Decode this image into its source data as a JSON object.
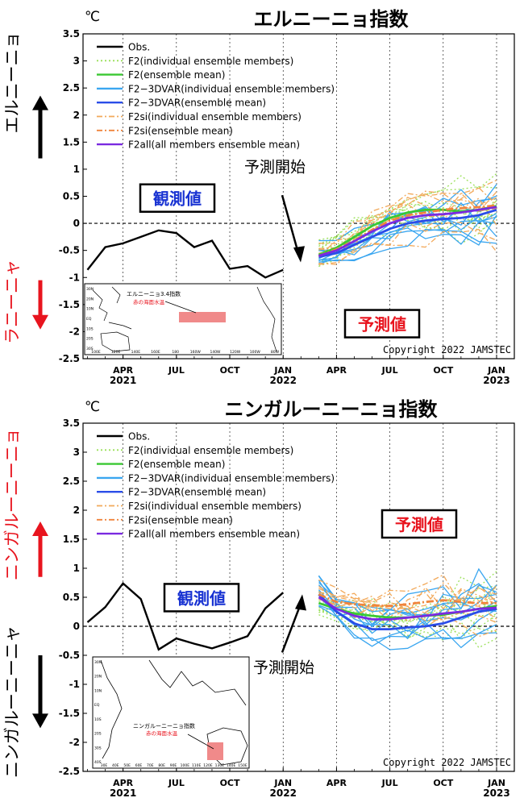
{
  "colors": {
    "obs": "#000000",
    "f2_member": "#9be05a",
    "f2_mean": "#3ac832",
    "f2_3dvar_member": "#3aa6f0",
    "f2_3dvar_mean": "#2a4de8",
    "f2si_member": "#f2a95a",
    "f2si_mean": "#f0843c",
    "f2all_mean": "#7a2ae0",
    "red_label": "#e8141e",
    "blue_label": "#1832d2",
    "map_box": "#f08a8a"
  },
  "chart_data": [
    {
      "type": "line",
      "title": "エルニーニョ指数",
      "unit": "℃",
      "ylim": [
        -2.5,
        3.5
      ],
      "yticks": [
        "3.5",
        "3",
        "2.5",
        "2",
        "1.5",
        "1",
        "0.5",
        "0",
        "-0.5",
        "-1",
        "-1.5",
        "-2",
        "-2.5"
      ],
      "xtick_labels": [
        {
          "l1": "APR",
          "l2": "2021"
        },
        {
          "l1": "JUL",
          "l2": ""
        },
        {
          "l1": "OCT",
          "l2": ""
        },
        {
          "l1": "JAN",
          "l2": "2022"
        },
        {
          "l1": "APR",
          "l2": ""
        },
        {
          "l1": "JUL",
          "l2": ""
        },
        {
          "l1": "OCT",
          "l2": ""
        },
        {
          "l1": "JAN",
          "l2": "2023"
        }
      ],
      "legend": [
        {
          "label": "Obs.",
          "color_key": "obs",
          "dash": "solid"
        },
        {
          "label": "F2(individual ensemble members)",
          "color_key": "f2_member",
          "dash": "dot"
        },
        {
          "label": "F2(ensemble mean)",
          "color_key": "f2_mean",
          "dash": "solid"
        },
        {
          "label": "F2−3DVAR(individual ensemble members)",
          "color_key": "f2_3dvar_member",
          "dash": "solid"
        },
        {
          "label": "F2−3DVAR(ensemble mean)",
          "color_key": "f2_3dvar_mean",
          "dash": "solid"
        },
        {
          "label": "F2si(individual ensemble members)",
          "color_key": "f2si_member",
          "dash": "dashdot"
        },
        {
          "label": "F2si(ensemble mean)",
          "color_key": "f2si_mean",
          "dash": "dashdot"
        },
        {
          "label": "F2all(all members ensemble mean)",
          "color_key": "f2all_mean",
          "dash": "solid"
        }
      ],
      "obs": {
        "months": [
          "2021-02",
          "2021-03",
          "2021-04",
          "2021-05",
          "2021-06",
          "2021-07",
          "2021-08",
          "2021-09",
          "2021-10",
          "2021-11",
          "2021-12",
          "2022-01"
        ],
        "values": [
          -0.86,
          -0.44,
          -0.37,
          -0.25,
          -0.13,
          -0.18,
          -0.44,
          -0.32,
          -0.84,
          -0.79,
          -1.0,
          -0.86
        ]
      },
      "forecast_months": [
        "2022-03",
        "2022-04",
        "2022-05",
        "2022-06",
        "2022-07",
        "2022-08",
        "2022-09",
        "2022-10",
        "2022-11",
        "2022-12",
        "2023-01"
      ],
      "forecast_means": [
        {
          "name": "F2(ensemble mean)",
          "color_key": "f2_mean",
          "values": [
            -0.58,
            -0.45,
            -0.25,
            -0.05,
            0.1,
            0.2,
            0.25,
            0.25,
            0.22,
            0.25,
            0.32
          ]
        },
        {
          "name": "F2−3DVAR(ensemble mean)",
          "color_key": "f2_3dvar_mean",
          "values": [
            -0.62,
            -0.55,
            -0.4,
            -0.25,
            -0.1,
            0.0,
            0.05,
            0.08,
            0.1,
            0.15,
            0.25
          ]
        },
        {
          "name": "F2si(ensemble mean)",
          "color_key": "f2si_mean",
          "values": [
            -0.6,
            -0.48,
            -0.32,
            -0.12,
            0.05,
            0.15,
            0.2,
            0.25,
            0.28,
            0.3,
            0.33
          ]
        },
        {
          "name": "F2all(all members ensemble mean)",
          "color_key": "f2all_mean",
          "values": [
            -0.6,
            -0.5,
            -0.33,
            -0.15,
            0.0,
            0.1,
            0.15,
            0.17,
            0.2,
            0.25,
            0.3
          ]
        }
      ],
      "annotations": {
        "obs_label": "観測値",
        "forecast_label": "予測値",
        "forecast_start": "予測開始",
        "copyright": "Copyright 2022 JAMSTEC",
        "side_top": "エルニーニョ",
        "side_bottom": "ラニーニャ",
        "map_title": "エルニーニョ3.4指数",
        "map_subtitle": "赤の海面水温",
        "map_lat": [
          "30N",
          "20N",
          "10N",
          "EQ",
          "10S",
          "20S",
          "30S"
        ],
        "map_lon": [
          "100E",
          "120E",
          "140E",
          "160E",
          "180",
          "160W",
          "140W",
          "120W",
          "100W",
          "80W"
        ]
      }
    },
    {
      "type": "line",
      "title": "ニンガルーニーニョ指数",
      "unit": "℃",
      "ylim": [
        -2.5,
        3.5
      ],
      "yticks": [
        "3.5",
        "3",
        "2.5",
        "2",
        "1.5",
        "1",
        "0.5",
        "0",
        "-0.5",
        "-1",
        "-1.5",
        "-2",
        "-2.5"
      ],
      "xtick_labels": [
        {
          "l1": "APR",
          "l2": "2021"
        },
        {
          "l1": "JUL",
          "l2": ""
        },
        {
          "l1": "OCT",
          "l2": ""
        },
        {
          "l1": "JAN",
          "l2": "2022"
        },
        {
          "l1": "APR",
          "l2": ""
        },
        {
          "l1": "JUL",
          "l2": ""
        },
        {
          "l1": "OCT",
          "l2": ""
        },
        {
          "l1": "JAN",
          "l2": "2023"
        }
      ],
      "legend": [
        {
          "label": "Obs.",
          "color_key": "obs",
          "dash": "solid"
        },
        {
          "label": "F2(individual ensemble members)",
          "color_key": "f2_member",
          "dash": "dot"
        },
        {
          "label": "F2(ensemble mean)",
          "color_key": "f2_mean",
          "dash": "solid"
        },
        {
          "label": "F2−3DVAR(individual ensemble members)",
          "color_key": "f2_3dvar_member",
          "dash": "solid"
        },
        {
          "label": "F2−3DVAR(ensemble mean)",
          "color_key": "f2_3dvar_mean",
          "dash": "solid"
        },
        {
          "label": "F2si(individual ensemble members)",
          "color_key": "f2si_member",
          "dash": "dashdot"
        },
        {
          "label": "F2si(ensemble mean)",
          "color_key": "f2si_mean",
          "dash": "dashdot"
        },
        {
          "label": "F2all(all members ensemble mean)",
          "color_key": "f2all_mean",
          "dash": "solid"
        }
      ],
      "obs": {
        "months": [
          "2021-02",
          "2021-03",
          "2021-04",
          "2021-05",
          "2021-06",
          "2021-07",
          "2021-08",
          "2021-09",
          "2021-10",
          "2021-11",
          "2021-12",
          "2022-01"
        ],
        "values": [
          0.07,
          0.33,
          0.74,
          0.47,
          -0.4,
          -0.21,
          -0.3,
          -0.38,
          -0.28,
          -0.17,
          0.31,
          0.58
        ]
      },
      "forecast_months": [
        "2022-03",
        "2022-04",
        "2022-05",
        "2022-06",
        "2022-07",
        "2022-08",
        "2022-09",
        "2022-10",
        "2022-11",
        "2022-12",
        "2023-01"
      ],
      "forecast_means": [
        {
          "name": "F2(ensemble mean)",
          "color_key": "f2_mean",
          "values": [
            0.4,
            0.3,
            0.22,
            0.18,
            0.15,
            0.15,
            0.18,
            0.2,
            0.25,
            0.3,
            0.35
          ]
        },
        {
          "name": "F2−3DVAR(ensemble mean)",
          "color_key": "f2_3dvar_mean",
          "values": [
            0.55,
            0.25,
            0.05,
            -0.05,
            -0.05,
            -0.02,
            0.0,
            0.05,
            0.15,
            0.25,
            0.3
          ]
        },
        {
          "name": "F2si(ensemble mean)",
          "color_key": "f2si_mean",
          "values": [
            0.55,
            0.42,
            0.38,
            0.36,
            0.35,
            0.38,
            0.42,
            0.45,
            0.42,
            0.4,
            0.4
          ]
        },
        {
          "name": "F2all(all members ensemble mean)",
          "color_key": "f2all_mean",
          "values": [
            0.5,
            0.3,
            0.18,
            0.12,
            0.12,
            0.15,
            0.18,
            0.22,
            0.25,
            0.3,
            0.32
          ]
        }
      ],
      "annotations": {
        "obs_label": "観測値",
        "forecast_label": "予測値",
        "forecast_start": "予測開始",
        "copyright": "Copyright 2022 JAMSTEC",
        "side_top": "ニンガルーニーニョ",
        "side_bottom": "ニンガルーニーニャ",
        "map_title": "ニンガルーニーニョ指数",
        "map_subtitle": "赤の海面水温",
        "map_lat": [
          "30N",
          "20N",
          "10N",
          "EQ",
          "10S",
          "20S",
          "30S",
          "40S"
        ],
        "map_lon": [
          "30E",
          "40E",
          "50E",
          "60E",
          "70E",
          "80E",
          "90E",
          "100E",
          "110E",
          "120E",
          "130E",
          "140E",
          "150E"
        ]
      }
    }
  ]
}
